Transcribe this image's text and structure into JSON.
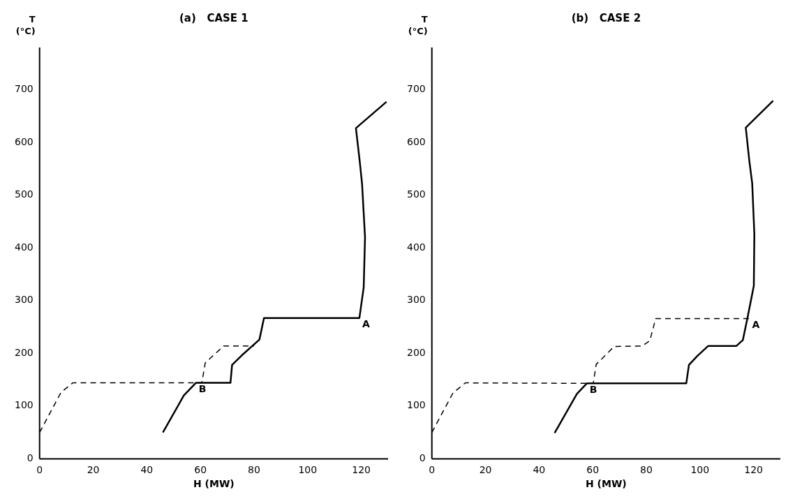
{
  "chart_data": [
    {
      "type": "line",
      "title": "(a)   CASE 1",
      "xlabel": "H (MW)",
      "ylabel": "T (°C)",
      "xlim": [
        0,
        130
      ],
      "ylim": [
        0,
        780
      ],
      "xticks": [
        0,
        20,
        40,
        60,
        80,
        100,
        120
      ],
      "yticks": [
        0,
        100,
        200,
        300,
        400,
        500,
        600,
        700
      ],
      "grid": false,
      "legend": false,
      "marker": "none",
      "series": [
        {
          "color": "#000000",
          "line_style": "solid",
          "x": [
            46,
            53.8,
            58.3,
            71.2,
            71.8,
            75.4,
            82,
            83.7,
            119.3,
            120.9,
            121.4,
            120.3,
            119.4,
            118,
            129.4
          ],
          "values": [
            50,
            120,
            144,
            144,
            178,
            196,
            226,
            267,
            267,
            325,
            420,
            521,
            565,
            627,
            677
          ]
        },
        {
          "color": "#000000",
          "line_style": "dashed",
          "x": [
            0,
            8,
            12.4,
            60.5,
            61.8,
            68.7,
            80
          ],
          "values": [
            50,
            126,
            144,
            144,
            182,
            214,
            214
          ]
        }
      ],
      "annotations": [
        {
          "text": "A",
          "x": 119.3,
          "y": 267
        },
        {
          "text": "B",
          "x": 58.3,
          "y": 144
        }
      ]
    },
    {
      "type": "line",
      "title": "(b)   CASE 2",
      "xlabel": "H (MW)",
      "ylabel": "T (°C)",
      "xlim": [
        0,
        130
      ],
      "ylim": [
        0,
        780
      ],
      "xticks": [
        0,
        20,
        40,
        60,
        80,
        100,
        120
      ],
      "yticks": [
        0,
        100,
        200,
        300,
        400,
        500,
        600,
        700
      ],
      "grid": false,
      "legend": false,
      "marker": "none",
      "series": [
        {
          "color": "#000000",
          "line_style": "solid",
          "x": [
            45.8,
            54.1,
            57.8,
            94.9,
            95.9,
            99,
            103.1,
            113.6,
            116,
            117.8,
            120.1,
            120.3,
            119.5,
            118.4,
            117.1,
            127.3
          ],
          "values": [
            49,
            123,
            143,
            143,
            178,
            195,
            214,
            214,
            225,
            269,
            328,
            426,
            522,
            566,
            628,
            679
          ]
        },
        {
          "color": "#000000",
          "line_style": "dashed",
          "x": [
            0,
            7.9,
            12.5,
            60.2,
            61.3,
            68,
            78.5,
            81.3,
            83.5,
            118.4
          ],
          "values": [
            50,
            125,
            144,
            143,
            179,
            213,
            214,
            224,
            266,
            266
          ]
        }
      ],
      "annotations": [
        {
          "text": "A",
          "x": 118.4,
          "y": 266
        },
        {
          "text": "B",
          "x": 57.8,
          "y": 143
        }
      ]
    }
  ]
}
